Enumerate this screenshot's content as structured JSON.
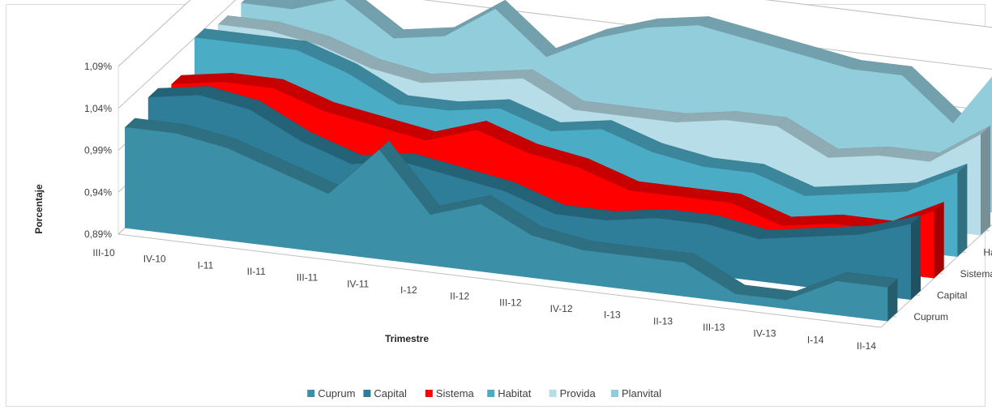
{
  "chart_data": {
    "type": "area",
    "variant": "3d-area",
    "title": "",
    "xlabel": "Trimestre",
    "ylabel": "Porcentaje",
    "categories": [
      "III-10",
      "IV-10",
      "I-11",
      "II-11",
      "III-11",
      "IV-11",
      "I-12",
      "II-12",
      "III-12",
      "IV-12",
      "I-13",
      "II-13",
      "III-13",
      "IV-13",
      "I-14",
      "II-14"
    ],
    "y_ticks": [
      "0,89%",
      "0,94%",
      "0,99%",
      "1,04%",
      "1,09%"
    ],
    "ylim": [
      0.89,
      1.09
    ],
    "depth_labels": [
      "Cuprum",
      "Capital",
      "Sistema",
      "Habitat",
      "Provida",
      "Planvital"
    ],
    "legend_position": "bottom",
    "gridlines": true,
    "series": [
      {
        "name": "Cuprum",
        "color": "#3B8FA7",
        "values": [
          1.01,
          1.01,
          1.0,
          0.98,
          0.96,
          1.02,
          0.95,
          0.97,
          0.94,
          0.93,
          0.93,
          0.93,
          0.9,
          0.9,
          0.93,
          0.93
        ]
      },
      {
        "name": "Capital",
        "color": "#2E7D99",
        "values": [
          1.02,
          1.03,
          1.02,
          0.99,
          0.97,
          0.98,
          0.97,
          0.96,
          0.94,
          0.94,
          0.95,
          0.95,
          0.94,
          0.95,
          0.96,
          0.98
        ]
      },
      {
        "name": "Sistema",
        "color": "#FF0000",
        "values": [
          1.01,
          1.02,
          1.02,
          1.0,
          0.99,
          0.98,
          1.0,
          0.98,
          0.97,
          0.95,
          0.95,
          0.95,
          0.93,
          0.94,
          0.94,
          0.97
        ]
      },
      {
        "name": "Habitat",
        "color": "#4BACC6",
        "values": [
          1.04,
          1.04,
          1.04,
          1.02,
          0.99,
          0.99,
          1.0,
          0.98,
          0.99,
          0.97,
          0.96,
          0.96,
          0.94,
          0.95,
          0.96,
          0.99
        ]
      },
      {
        "name": "Provida",
        "color": "#B7DDE8",
        "values": [
          1.03,
          1.03,
          1.02,
          1.0,
          0.99,
          1.0,
          1.01,
          0.98,
          0.98,
          0.98,
          0.99,
          0.99,
          0.96,
          0.97,
          0.97,
          1.01
        ]
      },
      {
        "name": "Planvital",
        "color": "#92CDDC",
        "values": [
          1.03,
          1.03,
          1.05,
          1.01,
          1.02,
          1.06,
          1.01,
          1.04,
          1.06,
          1.07,
          1.06,
          1.05,
          1.04,
          1.04,
          0.99,
          1.07
        ]
      }
    ]
  }
}
